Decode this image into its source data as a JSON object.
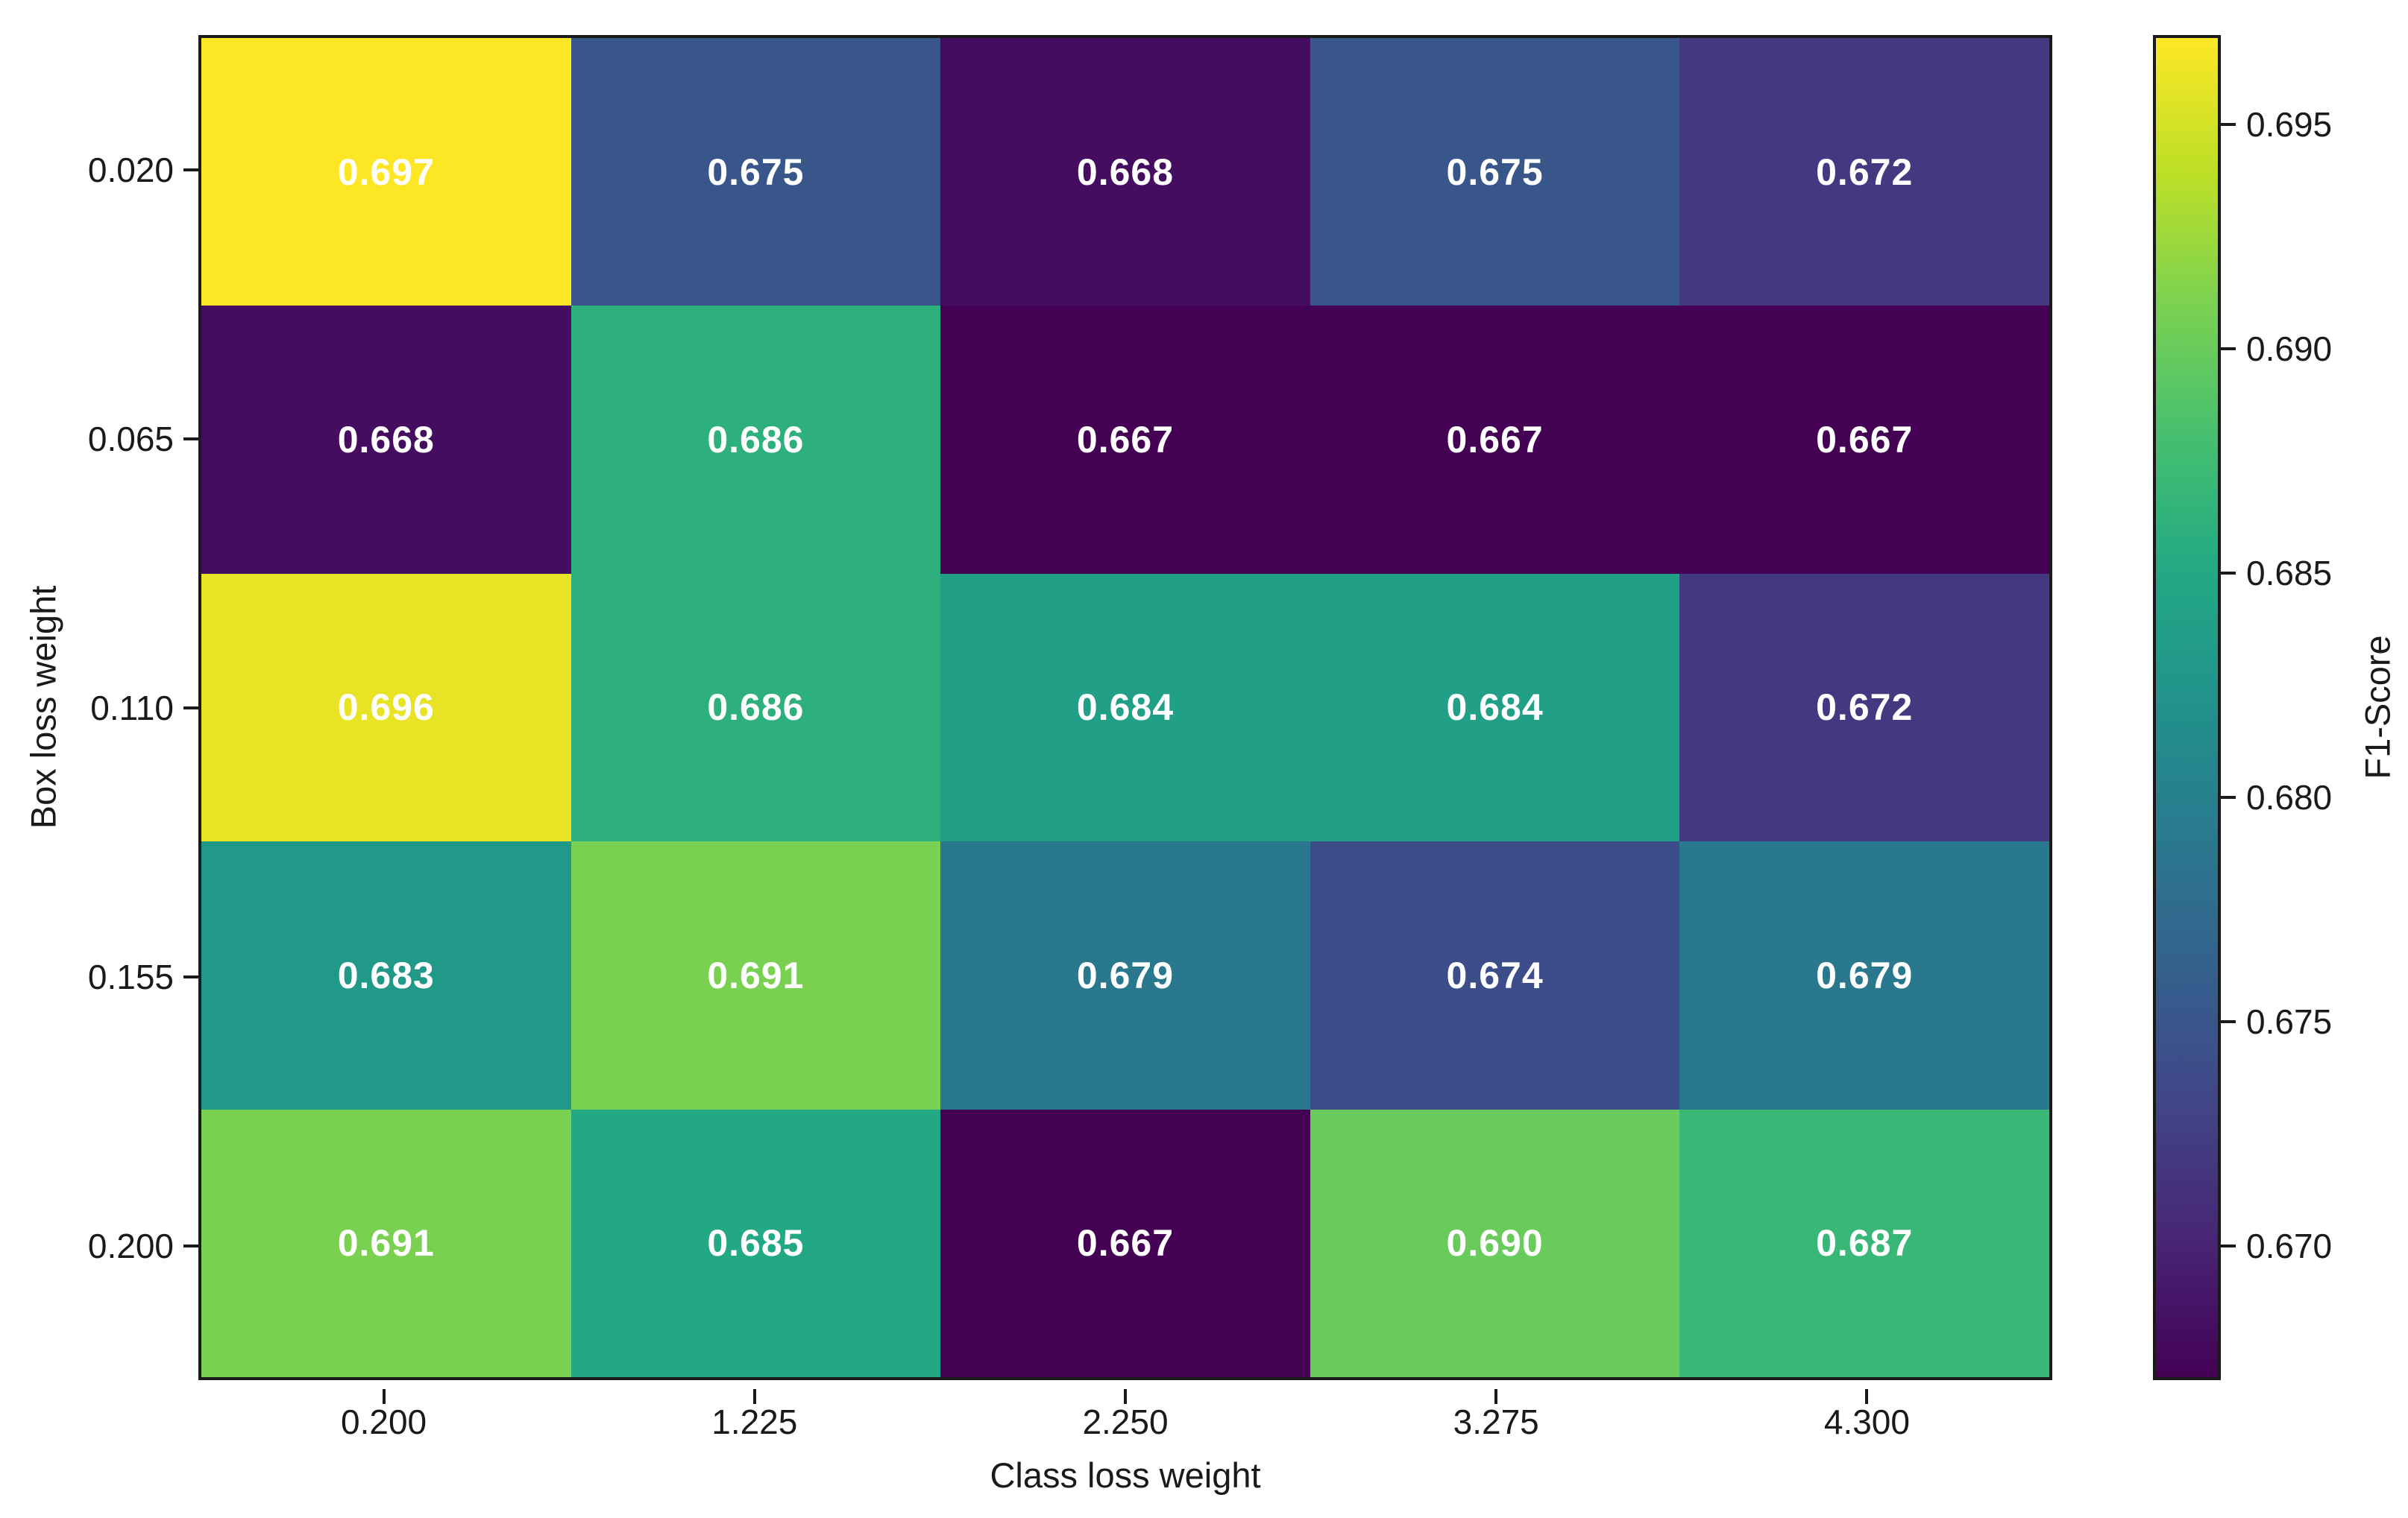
{
  "chart_data": {
    "type": "heatmap",
    "xlabel": "Class loss weight",
    "ylabel": "Box loss weight",
    "colorbar_label": "F1-Score",
    "x_categories": [
      "0.200",
      "1.225",
      "2.250",
      "3.275",
      "4.300"
    ],
    "y_categories": [
      "0.020",
      "0.065",
      "0.110",
      "0.155",
      "0.200"
    ],
    "values": [
      [
        0.697,
        0.675,
        0.668,
        0.675,
        0.672
      ],
      [
        0.668,
        0.686,
        0.667,
        0.667,
        0.667
      ],
      [
        0.696,
        0.686,
        0.684,
        0.684,
        0.672
      ],
      [
        0.683,
        0.691,
        0.679,
        0.674,
        0.679
      ],
      [
        0.691,
        0.685,
        0.667,
        0.69,
        0.687
      ]
    ],
    "cell_labels": [
      [
        "0.697",
        "0.675",
        "0.668",
        "0.675",
        "0.672"
      ],
      [
        "0.668",
        "0.686",
        "0.667",
        "0.667",
        "0.667"
      ],
      [
        "0.696",
        "0.686",
        "0.684",
        "0.684",
        "0.672"
      ],
      [
        "0.683",
        "0.691",
        "0.679",
        "0.674",
        "0.679"
      ],
      [
        "0.691",
        "0.685",
        "0.667",
        "0.690",
        "0.687"
      ]
    ],
    "vmin": 0.667,
    "vmax": 0.697,
    "colormap": "viridis",
    "colorbar_ticks": [
      "0.695",
      "0.690",
      "0.685",
      "0.680",
      "0.675",
      "0.670"
    ],
    "colorbar_tick_values": [
      0.695,
      0.69,
      0.685,
      0.68,
      0.675,
      0.67
    ],
    "annotation_color": "#ffffff",
    "axis_color": "#1a1a1a",
    "background": "#ffffff",
    "legend_position": "right",
    "grid": false
  }
}
